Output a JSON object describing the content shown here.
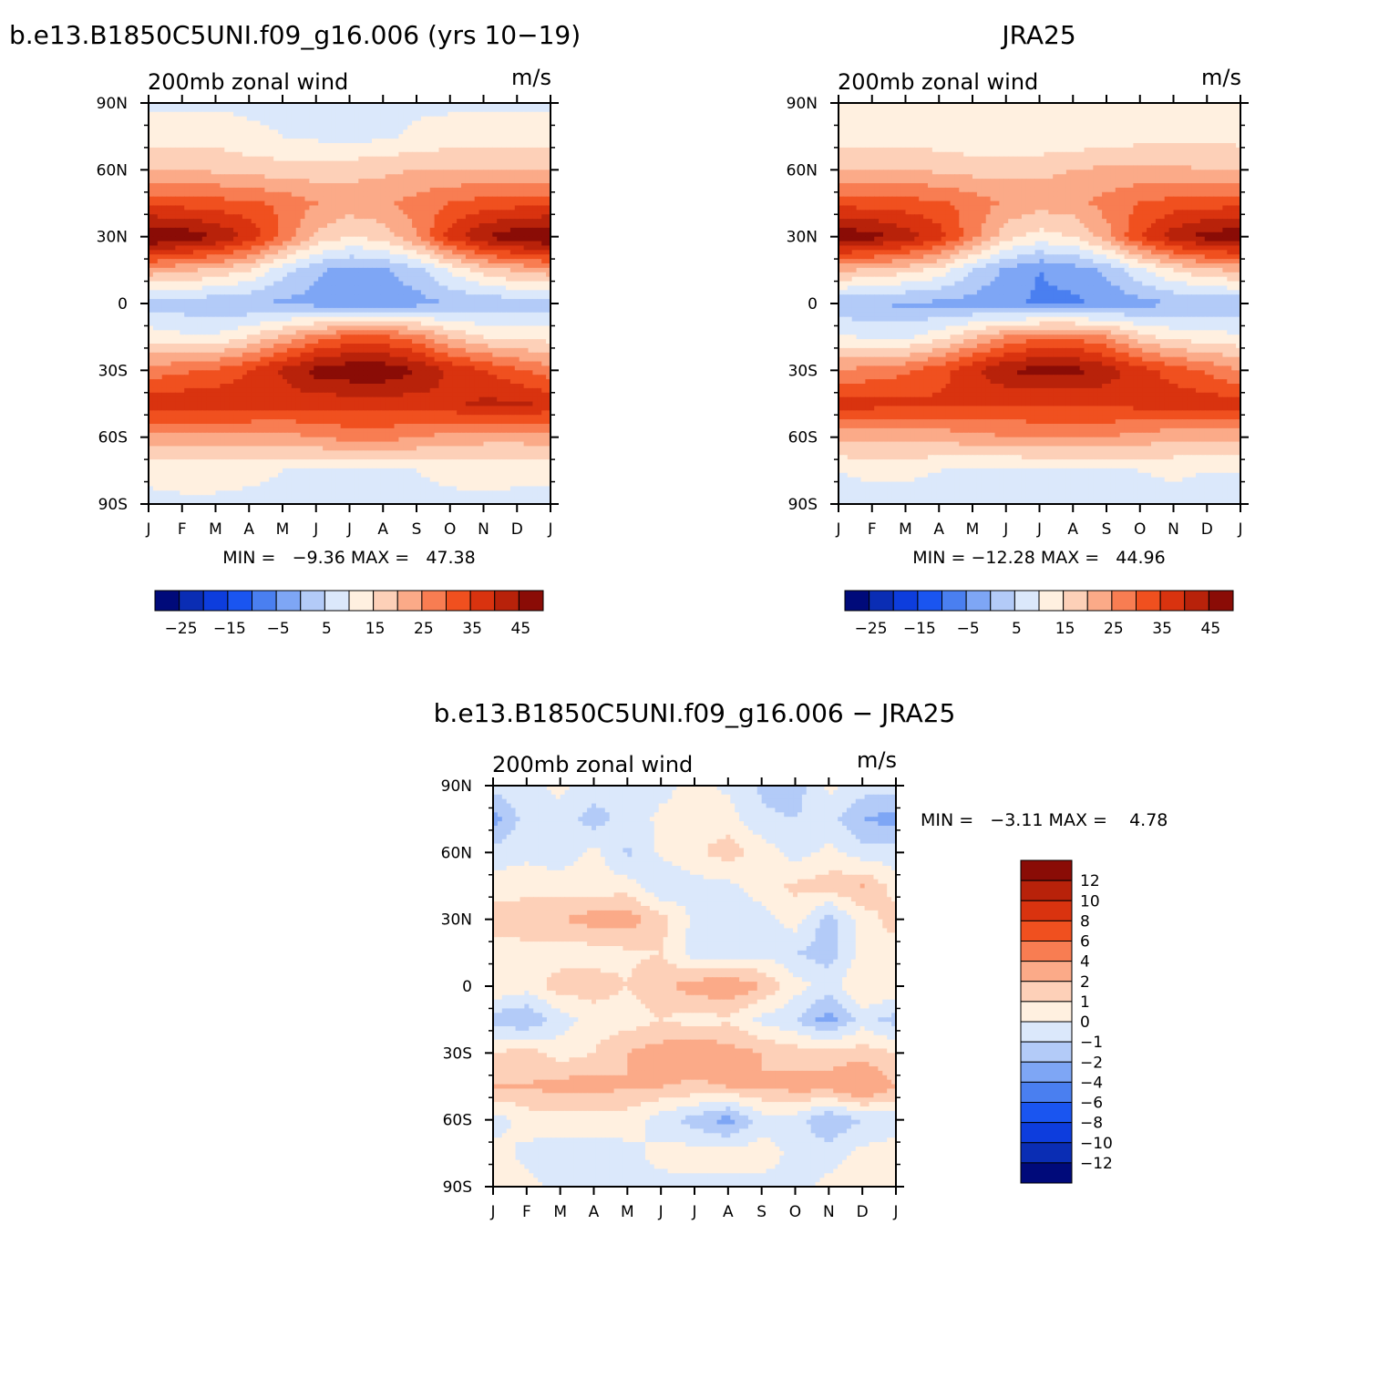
{
  "panels": [
    {
      "id": "model",
      "title": "b.e13.B1850C5UNI.f09_g16.006 (yrs 10−19)",
      "left_string": "200mb zonal wind",
      "right_string": "m/s",
      "stats": "MIN =   −9.36 MAX =   47.38"
    },
    {
      "id": "obs",
      "title": "JRA25",
      "left_string": "200mb zonal wind",
      "right_string": "m/s",
      "stats": "MIN = −12.28 MAX =   44.96"
    },
    {
      "id": "diff",
      "title": "b.e13.B1850C5UNI.f09_g16.006 − JRA25",
      "left_string": "200mb zonal wind",
      "right_string": "m/s",
      "stats": "MIN =   −3.11 MAX =    4.78"
    }
  ],
  "colorbar_main": {
    "colors": [
      "#000a7a",
      "#0a2db4",
      "#0d3ddd",
      "#1a55f0",
      "#4a7ff0",
      "#7ea6f5",
      "#b3cbf8",
      "#dbe8fb",
      "#fff0e0",
      "#fdd0b8",
      "#fbaa88",
      "#f87d52",
      "#f0501f",
      "#d9330f",
      "#b8220a",
      "#8a0c06"
    ],
    "labels": [
      "−25",
      "−15",
      "−5",
      "5",
      "15",
      "25",
      "35",
      "45"
    ]
  },
  "colorbar_diff": {
    "colors": [
      "#000a7a",
      "#0a2db4",
      "#0d3ddd",
      "#1a55f0",
      "#4a7ff0",
      "#7ea6f5",
      "#b3cbf8",
      "#dbe8fb",
      "#fff0e0",
      "#fdd0b8",
      "#fbaa88",
      "#f87d52",
      "#f0501f",
      "#d9330f",
      "#b8220a",
      "#8a0c06"
    ],
    "labels": [
      "12",
      "10",
      "8",
      "6",
      "4",
      "2",
      "1",
      "0",
      "−1",
      "−2",
      "−4",
      "−6",
      "−8",
      "−10",
      "−12"
    ]
  },
  "chart_data": [
    {
      "type": "heatmap",
      "title": "b.e13.B1850C5UNI.f09_g16.006 (yrs 10−19)",
      "variable": "200mb zonal wind",
      "units": "m/s",
      "x_ticks": [
        "J",
        "F",
        "M",
        "A",
        "M",
        "J",
        "J",
        "A",
        "S",
        "O",
        "N",
        "D",
        "J"
      ],
      "y_ticks": [
        "90N",
        "60N",
        "30N",
        "0",
        "30S",
        "60S",
        "90S"
      ],
      "ylim": [
        -90,
        90
      ],
      "levels": [
        -30,
        -25,
        -20,
        -15,
        -10,
        -5,
        0,
        5,
        10,
        15,
        20,
        25,
        30,
        35,
        40,
        45
      ],
      "min": -9.36,
      "max": 47.38,
      "lat": [
        90,
        75,
        60,
        45,
        30,
        15,
        0,
        -15,
        -30,
        -45,
        -60,
        -75,
        -90
      ],
      "month_values": [
        [
          4,
          4,
          4,
          4,
          4,
          4,
          4,
          4,
          4,
          4,
          4,
          4,
          4
        ],
        [
          7,
          7,
          8,
          6,
          5,
          4,
          3,
          4,
          6,
          7,
          8,
          8,
          7
        ],
        [
          15,
          15,
          14,
          13,
          12,
          12,
          13,
          14,
          15,
          15,
          15,
          15,
          15
        ],
        [
          28,
          28,
          27,
          26,
          24,
          20,
          18,
          19,
          22,
          25,
          27,
          28,
          28
        ],
        [
          46,
          44,
          40,
          34,
          24,
          14,
          10,
          12,
          20,
          32,
          40,
          44,
          46
        ],
        [
          18,
          16,
          14,
          10,
          2,
          -4,
          -7,
          -6,
          -2,
          6,
          12,
          16,
          18
        ],
        [
          -2,
          -3,
          -4,
          -5,
          -6,
          -7,
          -8,
          -8,
          -7,
          -5,
          -4,
          -3,
          -2
        ],
        [
          8,
          6,
          6,
          10,
          16,
          22,
          26,
          26,
          22,
          14,
          10,
          9,
          8
        ],
        [
          22,
          24,
          26,
          30,
          36,
          42,
          44,
          44,
          40,
          34,
          30,
          26,
          22
        ],
        [
          34,
          34,
          34,
          33,
          32,
          32,
          32,
          32,
          33,
          34,
          36,
          36,
          34
        ],
        [
          18,
          18,
          18,
          18,
          18,
          20,
          22,
          22,
          20,
          18,
          17,
          17,
          18
        ],
        [
          6,
          7,
          7,
          6,
          5,
          4,
          4,
          4,
          5,
          6,
          7,
          6,
          6
        ],
        [
          4,
          4,
          4,
          4,
          4,
          4,
          4,
          4,
          4,
          4,
          4,
          4,
          4
        ]
      ]
    },
    {
      "type": "heatmap",
      "title": "JRA25",
      "variable": "200mb zonal wind",
      "units": "m/s",
      "x_ticks": [
        "J",
        "F",
        "M",
        "A",
        "M",
        "J",
        "J",
        "A",
        "S",
        "O",
        "N",
        "D",
        "J"
      ],
      "y_ticks": [
        "90N",
        "60N",
        "30N",
        "0",
        "30S",
        "60S",
        "90S"
      ],
      "ylim": [
        -90,
        90
      ],
      "levels": [
        -30,
        -25,
        -20,
        -15,
        -10,
        -5,
        0,
        5,
        10,
        15,
        20,
        25,
        30,
        35,
        40,
        45
      ],
      "min": -12.28,
      "max": 44.96,
      "lat": [
        90,
        75,
        60,
        45,
        30,
        15,
        0,
        -15,
        -30,
        -45,
        -60,
        -75,
        -90
      ],
      "month_values": [
        [
          5,
          5,
          5,
          5,
          5,
          5,
          5,
          5,
          5,
          5,
          5,
          5,
          5
        ],
        [
          8,
          8,
          8,
          7,
          6,
          6,
          5,
          6,
          7,
          8,
          9,
          9,
          8
        ],
        [
          15,
          15,
          15,
          14,
          13,
          13,
          14,
          15,
          16,
          16,
          16,
          15,
          15
        ],
        [
          28,
          28,
          27,
          26,
          23,
          19,
          17,
          18,
          22,
          25,
          27,
          28,
          28
        ],
        [
          44,
          42,
          38,
          32,
          22,
          12,
          8,
          10,
          18,
          30,
          38,
          42,
          44
        ],
        [
          16,
          14,
          12,
          8,
          0,
          -6,
          -10,
          -8,
          -4,
          4,
          10,
          14,
          16
        ],
        [
          -4,
          -5,
          -6,
          -6,
          -7,
          -9,
          -11,
          -11,
          -9,
          -7,
          -5,
          -4,
          -4
        ],
        [
          6,
          4,
          4,
          8,
          14,
          20,
          24,
          24,
          20,
          12,
          8,
          7,
          6
        ],
        [
          20,
          22,
          24,
          28,
          34,
          40,
          42,
          42,
          38,
          32,
          28,
          24,
          20
        ],
        [
          32,
          32,
          31,
          31,
          30,
          30,
          30,
          30,
          31,
          32,
          33,
          33,
          32
        ],
        [
          17,
          17,
          17,
          17,
          18,
          20,
          21,
          21,
          20,
          18,
          16,
          16,
          17
        ],
        [
          5,
          6,
          6,
          5,
          4,
          3,
          3,
          3,
          4,
          5,
          6,
          5,
          5
        ],
        [
          3,
          3,
          3,
          3,
          3,
          3,
          3,
          3,
          3,
          3,
          3,
          3,
          3
        ]
      ]
    },
    {
      "type": "heatmap",
      "title": "b.e13.B1850C5UNI.f09_g16.006 − JRA25",
      "variable": "200mb zonal wind",
      "units": "m/s",
      "x_ticks": [
        "J",
        "F",
        "M",
        "A",
        "M",
        "J",
        "J",
        "A",
        "S",
        "O",
        "N",
        "D",
        "J"
      ],
      "y_ticks": [
        "90N",
        "60N",
        "30N",
        "0",
        "30S",
        "60S",
        "90S"
      ],
      "ylim": [
        -90,
        90
      ],
      "levels": [
        -12,
        -10,
        -8,
        -6,
        -4,
        -2,
        -1,
        0,
        1,
        2,
        4,
        6,
        8,
        10,
        12
      ],
      "min": -3.11,
      "max": 4.78,
      "lat": [
        90,
        75,
        60,
        45,
        30,
        15,
        0,
        -15,
        -30,
        -45,
        -60,
        -75,
        -90
      ],
      "month_values": [
        [
          -0.5,
          -0.3,
          0.2,
          -0.4,
          -0.5,
          -0.3,
          0.3,
          -0.2,
          -1.2,
          -1.5,
          0.2,
          -0.5,
          -0.5
        ],
        [
          -2.5,
          -0.5,
          -0.3,
          -1.5,
          -0.5,
          0.2,
          0.5,
          0.5,
          -0.8,
          -1.0,
          -0.5,
          -2.0,
          -2.5
        ],
        [
          -0.6,
          -0.2,
          -0.6,
          0.3,
          -1.2,
          0.2,
          0.8,
          1.5,
          0.6,
          -0.5,
          0.3,
          -0.6,
          -0.6
        ],
        [
          0.5,
          0.5,
          0.5,
          0.4,
          0.5,
          -1.0,
          -0.4,
          -0.3,
          0.5,
          1.2,
          1.5,
          2.0,
          0.5
        ],
        [
          1.5,
          1.8,
          2.0,
          2.5,
          2.5,
          1.5,
          -0.3,
          -0.5,
          -0.5,
          0.5,
          -1.5,
          0.5,
          1.5
        ],
        [
          0.5,
          0.5,
          0.5,
          0.5,
          0.8,
          1.0,
          -0.5,
          -0.6,
          -0.3,
          -1.0,
          -1.5,
          0.3,
          0.5
        ],
        [
          1.0,
          0.5,
          1.5,
          1.5,
          1.0,
          1.8,
          2.5,
          3.0,
          2.0,
          0.5,
          -0.5,
          1.0,
          1.0
        ],
        [
          -1.5,
          -2.0,
          -0.5,
          0.5,
          0.5,
          1.0,
          0.5,
          0.8,
          -0.3,
          -1.0,
          -2.5,
          -0.5,
          -1.5
        ],
        [
          1.0,
          1.5,
          0.5,
          1.0,
          2.0,
          2.5,
          3.0,
          2.5,
          2.0,
          1.5,
          1.5,
          1.5,
          1.0
        ],
        [
          2.0,
          2.0,
          2.5,
          2.5,
          2.0,
          2.0,
          1.8,
          2.0,
          2.0,
          2.5,
          2.5,
          3.5,
          2.0
        ],
        [
          -0.5,
          0.5,
          0.5,
          0.5,
          0.5,
          -0.5,
          -1.5,
          -2.5,
          -0.5,
          -0.5,
          -2.0,
          -1.0,
          -0.5
        ],
        [
          0.5,
          -0.3,
          -0.5,
          -0.5,
          -0.3,
          0.3,
          0.5,
          0.5,
          0.5,
          -0.3,
          -0.5,
          0.3,
          0.5
        ],
        [
          0.5,
          0.3,
          -0.3,
          -0.5,
          -0.5,
          -0.3,
          -0.3,
          -0.3,
          -0.3,
          -0.3,
          0.3,
          0.5,
          0.5
        ]
      ]
    }
  ]
}
